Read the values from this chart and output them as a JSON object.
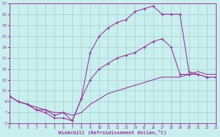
{
  "xlabel": "Windchill (Refroidissement éolien,°C)",
  "xlim": [
    0,
    23
  ],
  "ylim": [
    5,
    27
  ],
  "xticks": [
    0,
    1,
    2,
    3,
    4,
    5,
    6,
    7,
    8,
    9,
    10,
    11,
    12,
    13,
    14,
    15,
    16,
    17,
    18,
    19,
    20,
    21,
    22,
    23
  ],
  "yticks": [
    5,
    7,
    9,
    11,
    13,
    15,
    17,
    19,
    21,
    23,
    25,
    27
  ],
  "bg_color": "#c8eeee",
  "grid_color": "#a0cccc",
  "line_color": "#993399",
  "curve_top_x": [
    0,
    1,
    2,
    3,
    4,
    5,
    6,
    7,
    8,
    9,
    10,
    11,
    12,
    13,
    14,
    15,
    16,
    17,
    18,
    19,
    20,
    21,
    22,
    23
  ],
  "curve_top_y": [
    10,
    9,
    8.5,
    7.5,
    7.5,
    6.5,
    7.0,
    5.5,
    9.5,
    18,
    21,
    22.5,
    23.5,
    24,
    25.5,
    26,
    26.5,
    25,
    25,
    25,
    14.5,
    14,
    13.5,
    13.5
  ],
  "curve_mid_x": [
    0,
    1,
    2,
    3,
    4,
    5,
    6,
    7,
    8,
    9,
    10,
    11,
    12,
    13,
    14,
    15,
    16,
    17,
    18,
    19,
    20,
    21,
    22,
    23
  ],
  "curve_mid_y": [
    10,
    9,
    8.5,
    7.5,
    7.0,
    6.0,
    6.0,
    5.5,
    9.5,
    13,
    15,
    16,
    17,
    17.5,
    18,
    19,
    20,
    20.5,
    19,
    14,
    14,
    14,
    13.5,
    13.5
  ],
  "curve_bot_x": [
    0,
    1,
    2,
    3,
    4,
    5,
    6,
    7,
    8,
    9,
    10,
    11,
    12,
    13,
    14,
    15,
    16,
    17,
    18,
    19,
    20,
    21,
    22,
    23
  ],
  "curve_bot_y": [
    10,
    9,
    8.5,
    8.0,
    7.5,
    7.0,
    7.0,
    6.5,
    7.0,
    8.5,
    9.5,
    10.5,
    11.0,
    11.5,
    12.0,
    12.5,
    13.0,
    13.5,
    13.5,
    13.5,
    14.0,
    14.5,
    14.0,
    14.0
  ]
}
